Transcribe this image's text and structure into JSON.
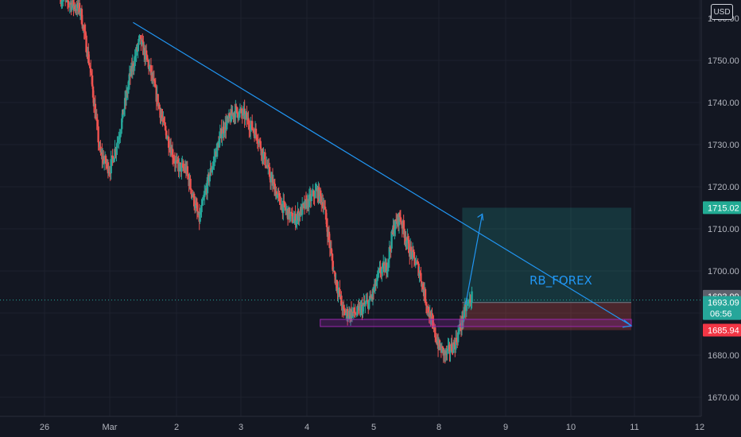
{
  "currency_label": "USD",
  "watermark": "RB_FOREX",
  "colors": {
    "background": "#131722",
    "grid": "#1e222d",
    "bull": "#26a69a",
    "bear": "#ef5350",
    "trendline": "#2196f3",
    "zone": "#9c27b0"
  },
  "price_tags": {
    "target": "1715.02",
    "last_gray": "1693.99",
    "current": "1693.09",
    "countdown": "06:56",
    "stop": "1685.94"
  },
  "chart_data": {
    "type": "candlestick",
    "y_axis": {
      "min": 1667,
      "max": 1768,
      "ticks": [
        "1670.00",
        "1680.00",
        "1690.00",
        "1700.00",
        "1710.00",
        "1720.00",
        "1730.00",
        "1740.00",
        "1750.00",
        "1760.00"
      ]
    },
    "x_axis": {
      "min": -1,
      "max": 12,
      "ticks": [
        "26",
        "Mar",
        "2",
        "3",
        "4",
        "5",
        "8",
        "9",
        "10",
        "11",
        "12"
      ]
    },
    "grid": true,
    "anchors": [
      {
        "t": -0.75,
        "p": 1765
      },
      {
        "t": -0.45,
        "p": 1762
      },
      {
        "t": -0.3,
        "p": 1748
      },
      {
        "t": -0.15,
        "p": 1728
      },
      {
        "t": 0.0,
        "p": 1724
      },
      {
        "t": 0.15,
        "p": 1733
      },
      {
        "t": 0.3,
        "p": 1746
      },
      {
        "t": 0.45,
        "p": 1755
      },
      {
        "t": 0.6,
        "p": 1748
      },
      {
        "t": 0.8,
        "p": 1735
      },
      {
        "t": 1.0,
        "p": 1725
      },
      {
        "t": 1.15,
        "p": 1724
      },
      {
        "t": 1.25,
        "p": 1718
      },
      {
        "t": 1.35,
        "p": 1712
      },
      {
        "t": 1.5,
        "p": 1722
      },
      {
        "t": 1.7,
        "p": 1733
      },
      {
        "t": 1.9,
        "p": 1738
      },
      {
        "t": 2.05,
        "p": 1737
      },
      {
        "t": 2.25,
        "p": 1732
      },
      {
        "t": 2.45,
        "p": 1722
      },
      {
        "t": 2.6,
        "p": 1716
      },
      {
        "t": 2.8,
        "p": 1712
      },
      {
        "t": 3.0,
        "p": 1716
      },
      {
        "t": 3.15,
        "p": 1719
      },
      {
        "t": 3.25,
        "p": 1716
      },
      {
        "t": 3.4,
        "p": 1700
      },
      {
        "t": 3.55,
        "p": 1690
      },
      {
        "t": 3.75,
        "p": 1690
      },
      {
        "t": 3.95,
        "p": 1693
      },
      {
        "t": 4.1,
        "p": 1700
      },
      {
        "t": 4.2,
        "p": 1701
      },
      {
        "t": 4.3,
        "p": 1710
      },
      {
        "t": 4.4,
        "p": 1713
      },
      {
        "t": 4.55,
        "p": 1705
      },
      {
        "t": 4.7,
        "p": 1700
      },
      {
        "t": 4.8,
        "p": 1693
      },
      {
        "t": 4.9,
        "p": 1687
      },
      {
        "t": 5.0,
        "p": 1682
      },
      {
        "t": 5.1,
        "p": 1680
      },
      {
        "t": 5.25,
        "p": 1683
      },
      {
        "t": 5.4,
        "p": 1691
      },
      {
        "t": 5.5,
        "p": 1694
      }
    ],
    "trendline": [
      {
        "t": 0.35,
        "p": 1759
      },
      {
        "t": 7.95,
        "p": 1687
      }
    ],
    "arrow": [
      {
        "t": 5.4,
        "p": 1692
      },
      {
        "t": 5.65,
        "p": 1713.5
      }
    ],
    "zone": {
      "t0": 3.2,
      "t1": 7.95,
      "p0": 1686.8,
      "p1": 1688.5
    },
    "position": {
      "t0": 5.35,
      "t1": 7.95,
      "entry": 1692.5,
      "target": 1715.02,
      "stop": 1685.94
    }
  }
}
